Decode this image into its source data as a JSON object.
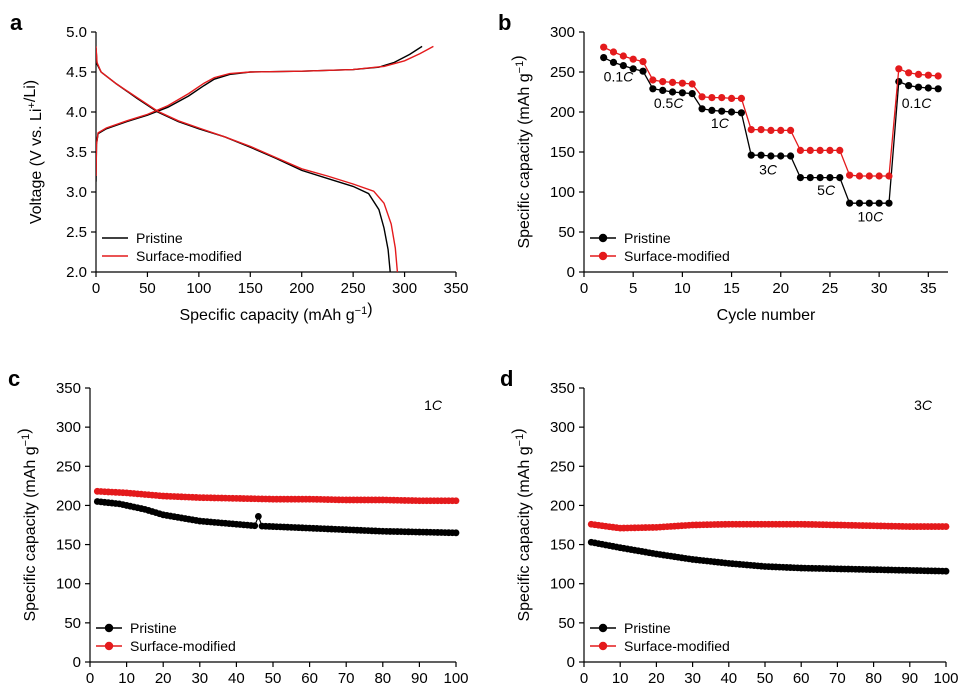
{
  "colors": {
    "pristine": "#000000",
    "surface": "#e41a1c"
  },
  "chart_data": [
    {
      "panel": "a",
      "type": "line",
      "xlabel": "Specific capacity (mAh g−1)",
      "ylabel": "Voltage (V vs. Li+/Li)",
      "xlim": [
        0,
        350
      ],
      "ylim": [
        2.0,
        5.0
      ],
      "xticks": [
        0,
        50,
        100,
        150,
        200,
        250,
        300,
        350
      ],
      "yticks": [
        2.0,
        2.5,
        3.0,
        3.5,
        4.0,
        4.5,
        5.0
      ],
      "legend": "bottom-left",
      "series": [
        {
          "name": "Pristine",
          "color": "#000000",
          "charge": [
            [
              0,
              3.13
            ],
            [
              0.5,
              3.6
            ],
            [
              2,
              3.73
            ],
            [
              10,
              3.79
            ],
            [
              30,
              3.88
            ],
            [
              50,
              3.96
            ],
            [
              70,
              4.06
            ],
            [
              90,
              4.2
            ],
            [
              105,
              4.33
            ],
            [
              115,
              4.41
            ],
            [
              130,
              4.47
            ],
            [
              150,
              4.5
            ],
            [
              200,
              4.51
            ],
            [
              250,
              4.53
            ],
            [
              275,
              4.56
            ],
            [
              290,
              4.62
            ],
            [
              305,
              4.72
            ],
            [
              317,
              4.82
            ]
          ],
          "discharge": [
            [
              0,
              4.8
            ],
            [
              1,
              4.6
            ],
            [
              5,
              4.5
            ],
            [
              20,
              4.35
            ],
            [
              40,
              4.17
            ],
            [
              60,
              4.0
            ],
            [
              80,
              3.88
            ],
            [
              100,
              3.79
            ],
            [
              125,
              3.69
            ],
            [
              150,
              3.56
            ],
            [
              175,
              3.42
            ],
            [
              200,
              3.27
            ],
            [
              225,
              3.17
            ],
            [
              250,
              3.07
            ],
            [
              265,
              2.98
            ],
            [
              275,
              2.78
            ],
            [
              280,
              2.55
            ],
            [
              284,
              2.28
            ],
            [
              286,
              2.0
            ]
          ]
        },
        {
          "name": "Surface-modified",
          "color": "#e41a1c",
          "charge": [
            [
              0,
              3.2
            ],
            [
              0.5,
              3.6
            ],
            [
              2,
              3.74
            ],
            [
              10,
              3.8
            ],
            [
              30,
              3.89
            ],
            [
              50,
              3.97
            ],
            [
              70,
              4.08
            ],
            [
              90,
              4.23
            ],
            [
              105,
              4.36
            ],
            [
              115,
              4.43
            ],
            [
              130,
              4.48
            ],
            [
              150,
              4.5
            ],
            [
              200,
              4.51
            ],
            [
              250,
              4.53
            ],
            [
              280,
              4.57
            ],
            [
              300,
              4.64
            ],
            [
              315,
              4.73
            ],
            [
              328,
              4.82
            ]
          ],
          "discharge": [
            [
              0,
              4.82
            ],
            [
              1,
              4.62
            ],
            [
              5,
              4.5
            ],
            [
              20,
              4.35
            ],
            [
              40,
              4.18
            ],
            [
              60,
              4.01
            ],
            [
              80,
              3.89
            ],
            [
              100,
              3.8
            ],
            [
              125,
              3.69
            ],
            [
              150,
              3.57
            ],
            [
              175,
              3.43
            ],
            [
              200,
              3.29
            ],
            [
              225,
              3.2
            ],
            [
              250,
              3.1
            ],
            [
              270,
              3.01
            ],
            [
              280,
              2.86
            ],
            [
              287,
              2.6
            ],
            [
              291,
              2.3
            ],
            [
              293,
              2.0
            ]
          ]
        }
      ]
    },
    {
      "panel": "b",
      "type": "line",
      "xlabel": "Cycle number",
      "ylabel": "Specific capacity (mAh g−1)",
      "xlim": [
        0,
        37
      ],
      "ylim": [
        0,
        300
      ],
      "xticks": [
        0,
        5,
        10,
        15,
        20,
        25,
        30,
        35
      ],
      "yticks": [
        0,
        50,
        100,
        150,
        200,
        250,
        300
      ],
      "legend": "bottom-left",
      "series": [
        {
          "name": "Pristine",
          "color": "#000000",
          "x": [
            2,
            3,
            4,
            5,
            6,
            7,
            8,
            9,
            10,
            11,
            12,
            13,
            14,
            15,
            16,
            17,
            18,
            19,
            20,
            21,
            22,
            23,
            24,
            25,
            26,
            27,
            28,
            29,
            30,
            31,
            32,
            33,
            34,
            35,
            36
          ],
          "values": [
            268,
            262,
            258,
            254,
            251,
            229,
            227,
            225,
            224,
            223,
            204,
            202,
            201,
            200,
            199,
            146,
            146,
            145,
            145,
            145,
            118,
            118,
            118,
            118,
            118,
            86,
            86,
            86,
            86,
            86,
            238,
            233,
            231,
            230,
            229
          ]
        },
        {
          "name": "Surface-modified",
          "color": "#e41a1c",
          "x": [
            2,
            3,
            4,
            5,
            6,
            7,
            8,
            9,
            10,
            11,
            12,
            13,
            14,
            15,
            16,
            17,
            18,
            19,
            20,
            21,
            22,
            23,
            24,
            25,
            26,
            27,
            28,
            29,
            30,
            31,
            32,
            33,
            34,
            35,
            36
          ],
          "values": [
            281,
            275,
            270,
            266,
            263,
            240,
            238,
            237,
            236,
            235,
            219,
            218,
            218,
            217,
            217,
            178,
            178,
            177,
            177,
            177,
            152,
            152,
            152,
            152,
            152,
            121,
            120,
            120,
            120,
            120,
            254,
            249,
            247,
            246,
            245
          ]
        }
      ],
      "annotations": [
        {
          "pre": "0.1",
          "italic": "C",
          "x": 2.0,
          "y": 238
        },
        {
          "pre": "0.5",
          "italic": "C",
          "x": 7.1,
          "y": 205
        },
        {
          "pre": "1",
          "italic": "C",
          "x": 12.9,
          "y": 180
        },
        {
          "pre": "3",
          "italic": "C",
          "x": 17.8,
          "y": 122
        },
        {
          "pre": "5",
          "italic": "C",
          "x": 23.7,
          "y": 96
        },
        {
          "pre": "10",
          "italic": "C",
          "x": 27.8,
          "y": 63
        },
        {
          "pre": "0.1",
          "italic": "C",
          "x": 32.3,
          "y": 205
        }
      ]
    },
    {
      "panel": "c",
      "type": "line",
      "xlabel": "Cycle number",
      "ylabel": "Specific capacity (mAh g−1)",
      "xlim": [
        0,
        100
      ],
      "ylim": [
        0,
        350
      ],
      "xticks": [
        0,
        10,
        20,
        30,
        40,
        50,
        60,
        70,
        80,
        90,
        100
      ],
      "yticks": [
        0,
        50,
        100,
        150,
        200,
        250,
        300,
        350
      ],
      "legend": "bottom-left",
      "rate_label": {
        "pre": "1",
        "italic": "C"
      },
      "series": [
        {
          "name": "Pristine",
          "color": "#000000",
          "spike": [
            46,
            186
          ],
          "curve": [
            [
              2,
              205
            ],
            [
              8,
              202
            ],
            [
              15,
              195
            ],
            [
              20,
              188
            ],
            [
              30,
              180
            ],
            [
              40,
              176
            ],
            [
              45,
              174
            ],
            [
              50,
              173
            ],
            [
              60,
              171
            ],
            [
              70,
              169
            ],
            [
              80,
              167
            ],
            [
              90,
              166
            ],
            [
              100,
              165
            ]
          ]
        },
        {
          "name": "Surface-modified",
          "color": "#e41a1c",
          "curve": [
            [
              2,
              218
            ],
            [
              10,
              216
            ],
            [
              20,
              212
            ],
            [
              30,
              210
            ],
            [
              40,
              209
            ],
            [
              50,
              208
            ],
            [
              60,
              208
            ],
            [
              70,
              207
            ],
            [
              80,
              207
            ],
            [
              90,
              206
            ],
            [
              100,
              206
            ]
          ]
        }
      ]
    },
    {
      "panel": "d",
      "type": "line",
      "xlabel": "Cycle number",
      "ylabel": "Specific capacity (mAh g−1)",
      "xlim": [
        0,
        100
      ],
      "ylim": [
        0,
        350
      ],
      "xticks": [
        0,
        10,
        20,
        30,
        40,
        50,
        60,
        70,
        80,
        90,
        100
      ],
      "yticks": [
        0,
        50,
        100,
        150,
        200,
        250,
        300,
        350
      ],
      "legend": "bottom-left",
      "rate_label": {
        "pre": "3",
        "italic": "C"
      },
      "series": [
        {
          "name": "Pristine",
          "color": "#000000",
          "curve": [
            [
              2,
              153
            ],
            [
              10,
              146
            ],
            [
              20,
              138
            ],
            [
              30,
              131
            ],
            [
              40,
              126
            ],
            [
              50,
              122
            ],
            [
              60,
              120
            ],
            [
              70,
              119
            ],
            [
              80,
              118
            ],
            [
              90,
              117
            ],
            [
              100,
              116
            ]
          ]
        },
        {
          "name": "Surface-modified",
          "color": "#e41a1c",
          "curve": [
            [
              2,
              176
            ],
            [
              5,
              174
            ],
            [
              10,
              171
            ],
            [
              20,
              172
            ],
            [
              30,
              175
            ],
            [
              40,
              176
            ],
            [
              50,
              176
            ],
            [
              60,
              176
            ],
            [
              70,
              175
            ],
            [
              80,
              174
            ],
            [
              90,
              173
            ],
            [
              100,
              173
            ]
          ]
        }
      ]
    }
  ]
}
